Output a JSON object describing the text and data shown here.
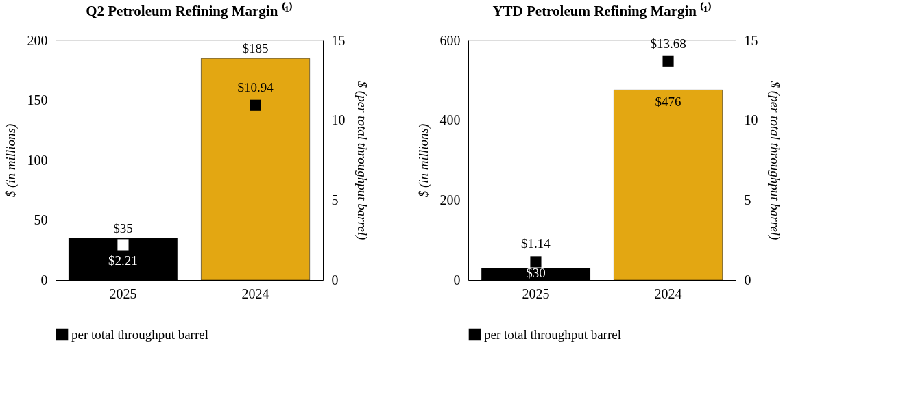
{
  "chart_data": [
    {
      "type": "bar",
      "title": "Q2 Petroleum Refining Margin ⁽¹⁾",
      "ylabel": "$ (in millions)",
      "y2label": "$ (per total throughput barrel)",
      "categories": [
        "2025",
        "2024"
      ],
      "ylim": [
        0,
        200
      ],
      "yticks": [
        0,
        50,
        100,
        150,
        200
      ],
      "y2lim": [
        0,
        15
      ],
      "y2ticks": [
        0,
        5,
        10,
        15
      ],
      "grid": false,
      "legend": "bottom",
      "series": [
        {
          "colors": [
            "#000000",
            "#e3a712"
          ],
          "values": [
            35,
            185
          ],
          "value_labels": [
            "$35",
            "$185"
          ]
        },
        {
          "type": "scatter",
          "name": "per total throughput barrel",
          "axis": "y2",
          "marker": "square",
          "color": "#000000",
          "colors": [
            "#ffffff",
            "#000000"
          ],
          "values": [
            2.21,
            10.94
          ],
          "value_labels": [
            "$2.21",
            "$10.94"
          ]
        }
      ]
    },
    {
      "type": "bar",
      "title": "YTD Petroleum Refining Margin ⁽¹⁾",
      "ylabel": "$ (in millions)",
      "y2label": "$ (per total throughput barrel)",
      "categories": [
        "2025",
        "2024"
      ],
      "ylim": [
        0,
        600
      ],
      "yticks": [
        0,
        200,
        400,
        600
      ],
      "y2lim": [
        0,
        15
      ],
      "y2ticks": [
        0,
        5,
        10,
        15
      ],
      "grid": false,
      "legend": "bottom",
      "series": [
        {
          "colors": [
            "#000000",
            "#e3a712"
          ],
          "values": [
            30,
            476
          ],
          "value_labels": [
            "$30",
            "$476"
          ]
        },
        {
          "type": "scatter",
          "name": "per total throughput barrel",
          "axis": "y2",
          "marker": "square",
          "color": "#000000",
          "colors": [
            "#000000",
            "#000000"
          ],
          "values": [
            1.14,
            13.68
          ],
          "value_labels": [
            "$1.14",
            "$13.68"
          ]
        }
      ]
    }
  ]
}
